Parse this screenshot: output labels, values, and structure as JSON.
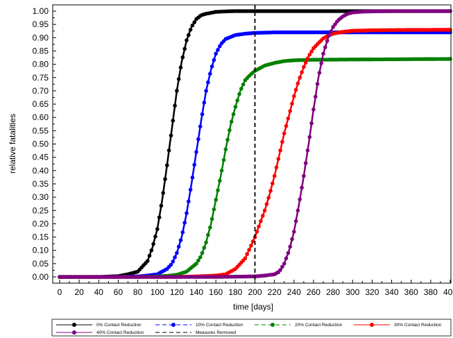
{
  "chart_data": {
    "type": "line",
    "xlabel": "time [days]",
    "ylabel": "relative fatalities",
    "xlim": [
      0,
      400
    ],
    "ylim": [
      0,
      1.0
    ],
    "xticks": [
      0,
      20,
      40,
      60,
      80,
      100,
      120,
      140,
      160,
      180,
      200,
      220,
      240,
      260,
      280,
      300,
      320,
      340,
      360,
      380,
      400
    ],
    "yticks": [
      0.0,
      0.05,
      0.1,
      0.15,
      0.2,
      0.25,
      0.3,
      0.35,
      0.4,
      0.45,
      0.5,
      0.55,
      0.6,
      0.65,
      0.7,
      0.75,
      0.8,
      0.85,
      0.9,
      0.95,
      1.0
    ],
    "ytick_labels": [
      "0.00",
      "0.05",
      "0.10",
      "0.15",
      "0.20",
      "0.25",
      "0.30",
      "0.35",
      "0.40",
      "0.45",
      "0.50",
      "0.55",
      "0.60",
      "0.65",
      "0.70",
      "0.75",
      "0.80",
      "0.85",
      "0.90",
      "0.95",
      "1.00"
    ],
    "grid": false,
    "legend_position": "bottom",
    "series": [
      {
        "name": "0% Contact Reduction",
        "color": "#000000",
        "line_style": "solid",
        "x": [
          0,
          20,
          40,
          60,
          70,
          80,
          90,
          95,
          100,
          105,
          110,
          115,
          120,
          125,
          130,
          135,
          140,
          145,
          150,
          160,
          170,
          180,
          200,
          250,
          300,
          350,
          400
        ],
        "y": [
          0.0,
          0.0,
          0.0,
          0.003,
          0.01,
          0.02,
          0.06,
          0.11,
          0.18,
          0.29,
          0.42,
          0.56,
          0.7,
          0.81,
          0.89,
          0.94,
          0.97,
          0.985,
          0.99,
          0.997,
          0.999,
          1.0,
          1.0,
          1.0,
          1.0,
          1.0,
          1.0
        ]
      },
      {
        "name": "10% Contact Reduction",
        "color": "#0000ff",
        "line_style": "dashed",
        "x": [
          0,
          20,
          40,
          60,
          80,
          90,
          100,
          110,
          115,
          120,
          125,
          130,
          135,
          140,
          145,
          150,
          155,
          160,
          165,
          170,
          180,
          190,
          200,
          220,
          250,
          300,
          350,
          400
        ],
        "y": [
          0.0,
          0.0,
          0.0,
          0.0,
          0.002,
          0.005,
          0.01,
          0.03,
          0.05,
          0.09,
          0.15,
          0.24,
          0.35,
          0.47,
          0.59,
          0.7,
          0.78,
          0.84,
          0.875,
          0.895,
          0.91,
          0.915,
          0.918,
          0.92,
          0.92,
          0.92,
          0.92,
          0.92
        ]
      },
      {
        "name": "20% Contact Reduction",
        "color": "#008000",
        "line_style": "dashed",
        "x": [
          0,
          20,
          40,
          60,
          80,
          100,
          110,
          120,
          130,
          140,
          145,
          150,
          155,
          160,
          165,
          170,
          175,
          180,
          185,
          190,
          195,
          200,
          210,
          220,
          230,
          240,
          260,
          300,
          350,
          400
        ],
        "y": [
          0.0,
          0.0,
          0.0,
          0.0,
          0.0,
          0.002,
          0.004,
          0.008,
          0.02,
          0.05,
          0.08,
          0.13,
          0.2,
          0.29,
          0.38,
          0.48,
          0.57,
          0.64,
          0.7,
          0.74,
          0.76,
          0.775,
          0.795,
          0.805,
          0.812,
          0.815,
          0.817,
          0.818,
          0.819,
          0.82
        ]
      },
      {
        "name": "30% Contact Reduction",
        "color": "#ff0000",
        "line_style": "solid",
        "x": [
          0,
          40,
          80,
          120,
          140,
          160,
          170,
          180,
          190,
          195,
          200,
          205,
          210,
          215,
          220,
          225,
          230,
          235,
          240,
          245,
          250,
          255,
          260,
          265,
          270,
          275,
          280,
          290,
          300,
          320,
          350,
          400
        ],
        "y": [
          0.0,
          0.0,
          0.0,
          0.0,
          0.002,
          0.005,
          0.01,
          0.03,
          0.07,
          0.11,
          0.15,
          0.2,
          0.25,
          0.31,
          0.38,
          0.46,
          0.54,
          0.61,
          0.68,
          0.74,
          0.79,
          0.83,
          0.86,
          0.88,
          0.897,
          0.908,
          0.915,
          0.922,
          0.926,
          0.928,
          0.929,
          0.93
        ]
      },
      {
        "name": "40% Contact Reduction",
        "color": "#800080",
        "line_style": "solid",
        "x": [
          0,
          40,
          80,
          120,
          160,
          200,
          210,
          220,
          225,
          230,
          235,
          240,
          245,
          250,
          255,
          260,
          265,
          270,
          275,
          280,
          285,
          290,
          295,
          300,
          310,
          320,
          340,
          360,
          400
        ],
        "y": [
          0.0,
          0.0,
          0.0,
          0.0,
          0.0,
          0.002,
          0.005,
          0.01,
          0.02,
          0.05,
          0.1,
          0.17,
          0.27,
          0.38,
          0.5,
          0.63,
          0.75,
          0.84,
          0.9,
          0.94,
          0.965,
          0.98,
          0.99,
          0.995,
          0.998,
          0.999,
          1.0,
          1.0,
          1.0
        ]
      }
    ],
    "vertical_lines": [
      {
        "name": "Measures Removed",
        "x": 200,
        "color": "#000000",
        "line_style": "dashed"
      }
    ]
  }
}
